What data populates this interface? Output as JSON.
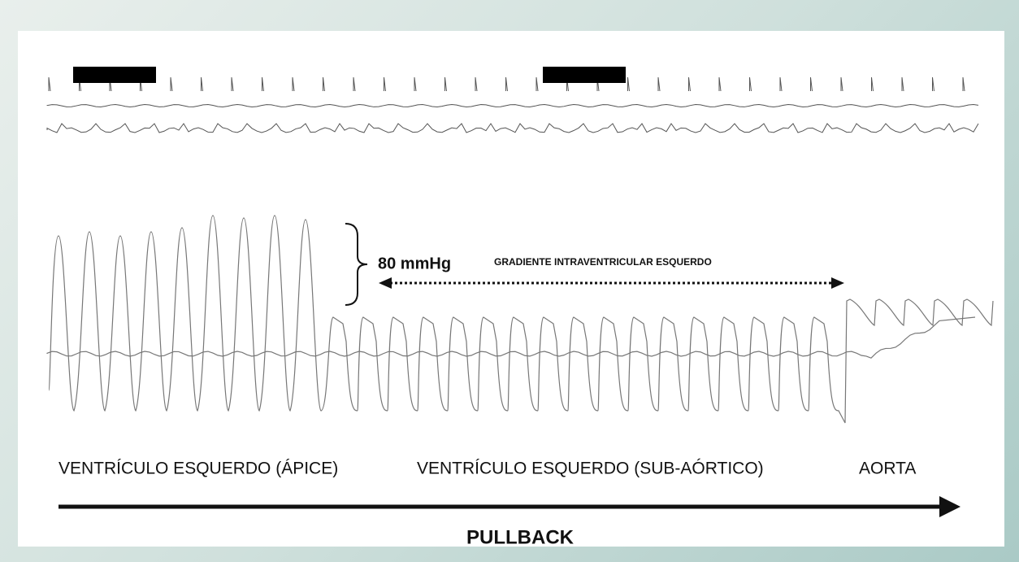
{
  "annotation": {
    "pressure": "80 mmHg",
    "gradient": "GRADIENTE INTRAVENTRICULAR ESQUERDO"
  },
  "regions": [
    "VENTRÍCULO ESQUERDO (ÁPICE)",
    "VENTRÍCULO ESQUERDO (SUB-AÓRTICO)",
    "AORTA"
  ],
  "direction": "PULLBACK"
}
